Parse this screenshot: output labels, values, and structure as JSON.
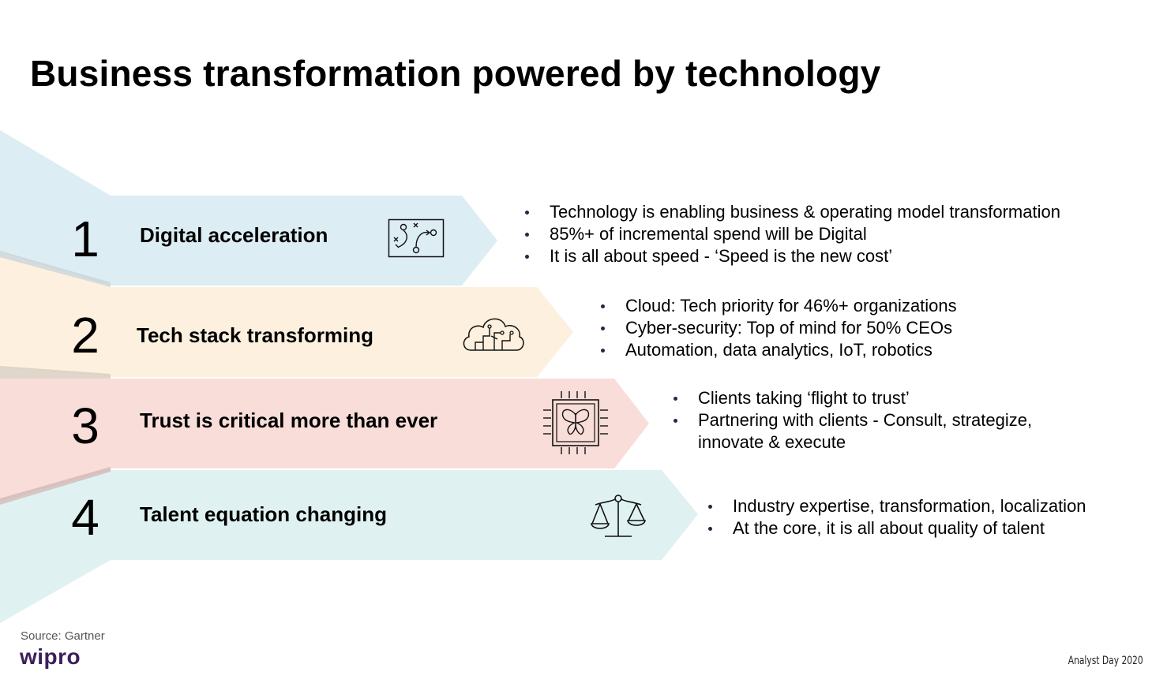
{
  "slide": {
    "title": "Business transformation powered by technology",
    "source": "Source: Gartner",
    "logo": "wipro",
    "event": "Analyst Day 2020"
  },
  "rows": [
    {
      "number": "1",
      "label": "Digital acceleration",
      "icon": "strategy-board-icon",
      "color": "#dcedf4",
      "bullets": [
        "Technology is enabling business & operating model transformation",
        "85%+ of incremental spend will be Digital",
        "It is all about speed - ‘Speed is the new cost’"
      ]
    },
    {
      "number": "2",
      "label": "Tech stack transforming",
      "icon": "cloud-circuit-icon",
      "color": "#fdf0de",
      "bullets": [
        "Cloud: Tech priority for 46%+ organizations",
        "Cyber-security: Top of mind for 50% CEOs",
        "Automation, data analytics, IoT, robotics"
      ]
    },
    {
      "number": "3",
      "label": "Trust is critical more than ever",
      "icon": "butterfly-chip-icon",
      "color": "#f9ddd9",
      "bullets": [
        "Clients taking ‘flight to trust’",
        "Partnering with clients - Consult, strategize,",
        "innovate & execute"
      ]
    },
    {
      "number": "4",
      "label": "Talent equation changing",
      "icon": "balance-scale-icon",
      "color": "#dff1f1",
      "bullets": [
        "Industry expertise, transformation, localization",
        "At the core, it is all about quality of talent"
      ]
    }
  ]
}
